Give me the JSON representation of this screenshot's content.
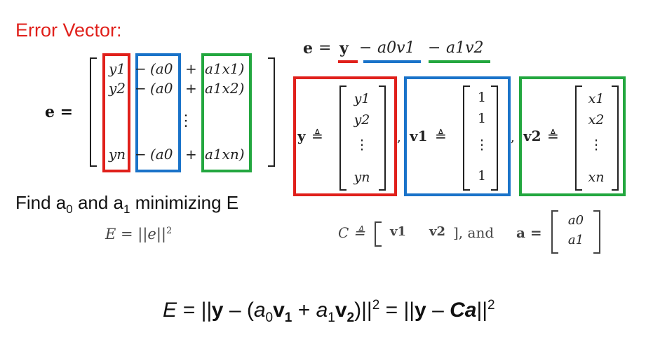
{
  "title": "Error Vector:",
  "colors": {
    "red": "#e0201b",
    "blue": "#1a73c9",
    "green": "#23a73f"
  },
  "left_matrix": {
    "lhs": "e =",
    "rows": [
      {
        "y": "y1",
        "minus": "−",
        "a0": "(a0",
        "plus": "+",
        "ax": "a1x1)"
      },
      {
        "y": "y2",
        "minus": "−",
        "a0": "(a0",
        "plus": "+",
        "ax": "a1x2)"
      },
      {
        "y": "yn",
        "minus": "−",
        "a0": "(a0",
        "plus": "+",
        "ax": "a1xn)"
      }
    ],
    "vdots": "⋮"
  },
  "top_equation": {
    "e": "e",
    "eq": "=",
    "y": "y",
    "minus1": "−",
    "term1": "a0v1",
    "minus2": "−",
    "term2": "a1v2"
  },
  "vectors": {
    "def": "≜",
    "y": {
      "name": "y",
      "entries": [
        "y1",
        "y2",
        "⋮",
        "yn"
      ]
    },
    "v1": {
      "name": "v1",
      "entries": [
        "1",
        "1",
        "⋮",
        "1"
      ]
    },
    "v2": {
      "name": "v2",
      "entries": [
        "x1",
        "x2",
        "⋮",
        "xn"
      ]
    },
    "comma": ","
  },
  "find_text": {
    "prefix": "Find a",
    "sub0": "0",
    "mid": " and a",
    "sub1": "1",
    "suffix": " minimizing E"
  },
  "E_def": "E = ||e||",
  "E_exp": "2",
  "C_def": {
    "C": "C ≜",
    "v1": "v1",
    "v2": "v2",
    "and": "], and",
    "a": "a =",
    "a0": "a0",
    "a1": "a1"
  },
  "final_equation": {
    "part1": "E = ||",
    "y": "y",
    "part2": " – (",
    "a0": "a",
    "a0sub": "0",
    "v1": "v",
    "v1sub": "1",
    "plus": " + ",
    "a1": "a",
    "a1sub": "1",
    "v2": "v",
    "v2sub": "2",
    "close": ")||",
    "sq1": "2",
    "part3": " = ||",
    "y2": "y",
    "part4": " – ",
    "Ca": "Ca",
    "close2": "||",
    "sq2": "2"
  }
}
